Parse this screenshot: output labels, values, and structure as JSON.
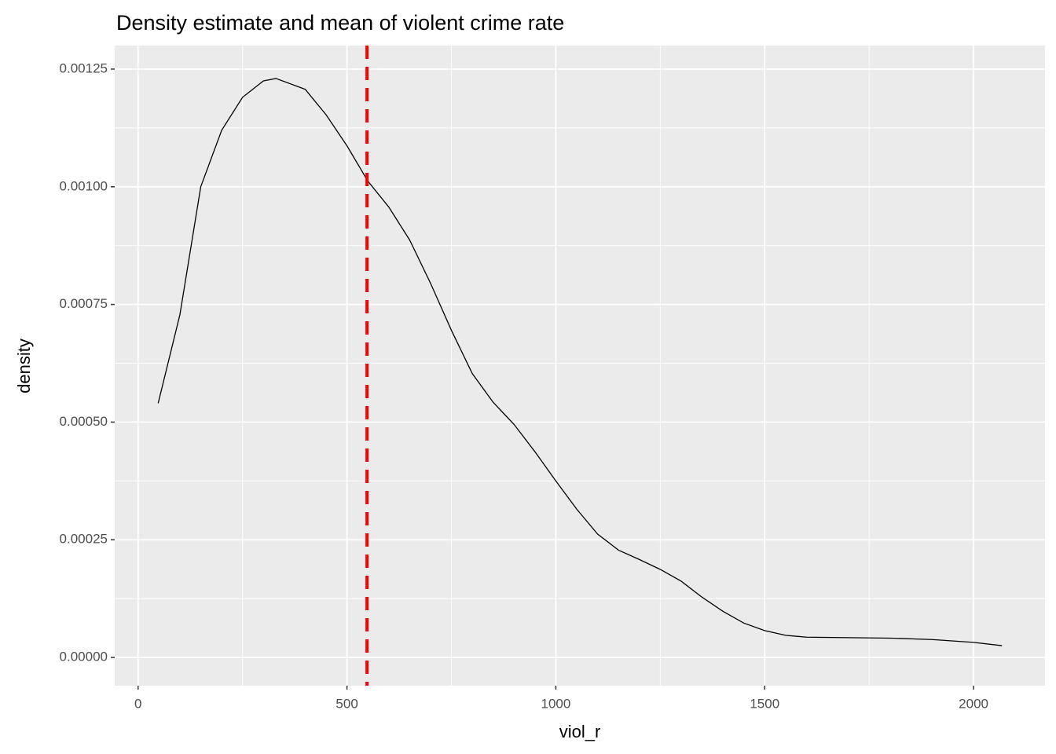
{
  "chart_data": {
    "type": "line",
    "title": "Density estimate and mean of violent crime rate",
    "x_label": "viol_r",
    "y_label": "density",
    "x": [
      48,
      100,
      150,
      200,
      250,
      300,
      330,
      400,
      450,
      500,
      550,
      600,
      650,
      700,
      750,
      800,
      850,
      900,
      950,
      1000,
      1050,
      1100,
      1150,
      1200,
      1250,
      1300,
      1350,
      1400,
      1450,
      1500,
      1550,
      1600,
      1700,
      1800,
      1900,
      2000,
      2068
    ],
    "values": [
      0.00054,
      0.000728,
      0.001,
      0.00112,
      0.00119,
      0.001225,
      0.00123,
      0.001207,
      0.001153,
      0.001087,
      0.001012,
      0.000957,
      0.000887,
      0.000795,
      0.000695,
      0.000603,
      0.000542,
      0.000495,
      0.000437,
      0.000375,
      0.000315,
      0.000262,
      0.000228,
      0.000208,
      0.000187,
      0.000162,
      0.000128,
      9.8e-05,
      7.3e-05,
      5.7e-05,
      4.7e-05,
      4.3e-05,
      4.2e-05,
      4.1e-05,
      3.8e-05,
      3.2e-05,
      2.5e-05
    ],
    "color": "#000000",
    "vline": {
      "x": 548,
      "color": "#ff0000"
    },
    "xlim": [
      -56,
      2171
    ],
    "ylim": [
      -6e-05,
      0.0013
    ],
    "xticks": [
      0,
      500,
      1000,
      1500,
      2000
    ],
    "yticks": [
      {
        "value": 0,
        "label": "0.00000"
      },
      {
        "value": 0.00025,
        "label": "0.00025"
      },
      {
        "value": 0.0005,
        "label": "0.00050"
      },
      {
        "value": 0.00075,
        "label": "0.00075"
      },
      {
        "value": 0.001,
        "label": "0.00100"
      },
      {
        "value": 0.00125,
        "label": "0.00125"
      }
    ],
    "x_minor_grid": [
      250,
      750,
      1250,
      1750
    ],
    "y_minor_grid": [
      0.000125,
      0.000375,
      0.000625,
      0.000875,
      0.001125
    ],
    "grid": true
  }
}
